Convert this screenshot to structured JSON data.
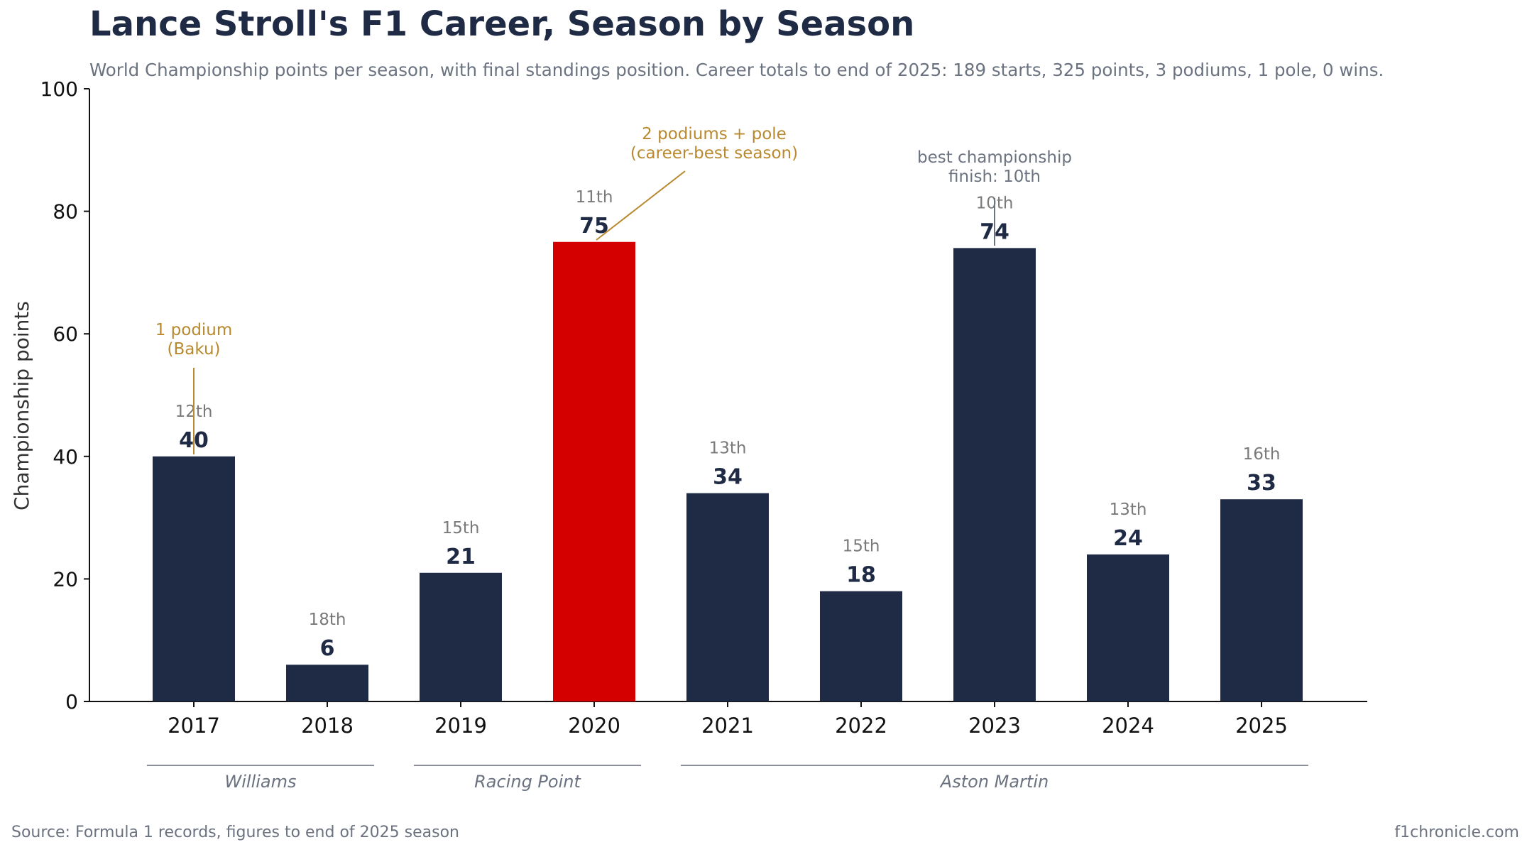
{
  "header": {
    "title": "Lance Stroll's F1 Career, Season by Season",
    "subtitle": "World Championship points per season, with final standings position. Career totals to end of 2025: 189 starts, 325 points, 3 podiums, 1 pole, 0 wins."
  },
  "footer": {
    "source": "Source: Formula 1 records, figures to end of 2025 season",
    "credit": "f1chronicle.com"
  },
  "colors": {
    "bar": "#1f2a44",
    "highlight": "#d40000",
    "annotation_gold": "#b8892f",
    "annotation_gray": "#6b7280"
  },
  "chart_data": {
    "type": "bar",
    "categories": [
      "2017",
      "2018",
      "2019",
      "2020",
      "2021",
      "2022",
      "2023",
      "2024",
      "2025"
    ],
    "values": [
      40,
      6,
      21,
      75,
      34,
      18,
      74,
      24,
      33
    ],
    "positions": [
      "12th",
      "18th",
      "15th",
      "11th",
      "13th",
      "15th",
      "10th",
      "13th",
      "16th"
    ],
    "highlight_index": 3,
    "ylabel": "Championship points",
    "xlabel": "",
    "ylim": [
      0,
      100
    ],
    "yticks": [
      0,
      20,
      40,
      60,
      80,
      100
    ],
    "grid": false,
    "annotations": [
      {
        "category": "2017",
        "lines": [
          "1 podium",
          "(Baku)"
        ],
        "style": "gold"
      },
      {
        "category": "2020",
        "lines": [
          "2 podiums + pole",
          "(career-best season)"
        ],
        "style": "gold"
      },
      {
        "category": "2023",
        "lines": [
          "best championship",
          "finish: 10th"
        ],
        "style": "gray"
      }
    ],
    "teams": [
      {
        "name": "Williams",
        "from": "2017",
        "to": "2018"
      },
      {
        "name": "Racing Point",
        "from": "2019",
        "to": "2020"
      },
      {
        "name": "Aston Martin",
        "from": "2021",
        "to": "2025"
      }
    ]
  }
}
